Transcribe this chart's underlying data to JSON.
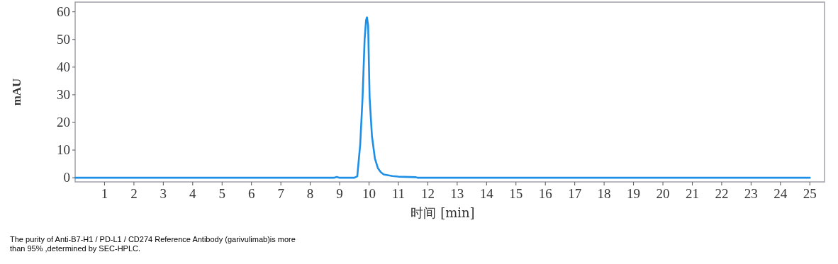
{
  "chart_data": {
    "type": "line",
    "xlabel": "时间 [min]",
    "ylabel": "mAU",
    "annotations": [
      "The purity of Anti-B7-H1 / PD-L1 / CD274 Reference Antibody (garivulimab)is more than 95% ,determined by SEC-HPLC."
    ],
    "x": [
      0,
      8.8,
      8.9,
      9.0,
      9.5,
      9.6,
      9.7,
      9.78,
      9.85,
      9.9,
      9.93,
      9.97,
      10.02,
      10.1,
      10.2,
      10.3,
      10.4,
      10.5,
      10.8,
      11.0,
      11.6,
      11.65,
      25
    ],
    "series": [
      {
        "color": "#1e8fe6",
        "values": [
          0,
          0,
          0.3,
          0,
          0,
          0.5,
          12,
          29,
          50,
          57,
          58,
          55,
          29,
          15,
          7,
          3.5,
          2,
          1.2,
          0.6,
          0.4,
          0.2,
          0,
          0
        ]
      }
    ],
    "xlim": [
      0,
      25.5
    ],
    "ylim": [
      -1.5,
      63.5
    ],
    "xticks": [
      1,
      2,
      3,
      4,
      5,
      6,
      7,
      8,
      9,
      10,
      11,
      12,
      13,
      14,
      15,
      16,
      17,
      18,
      19,
      20,
      21,
      22,
      23,
      24,
      25
    ],
    "yticks": [
      0,
      10,
      20,
      30,
      40,
      50,
      60
    ]
  }
}
